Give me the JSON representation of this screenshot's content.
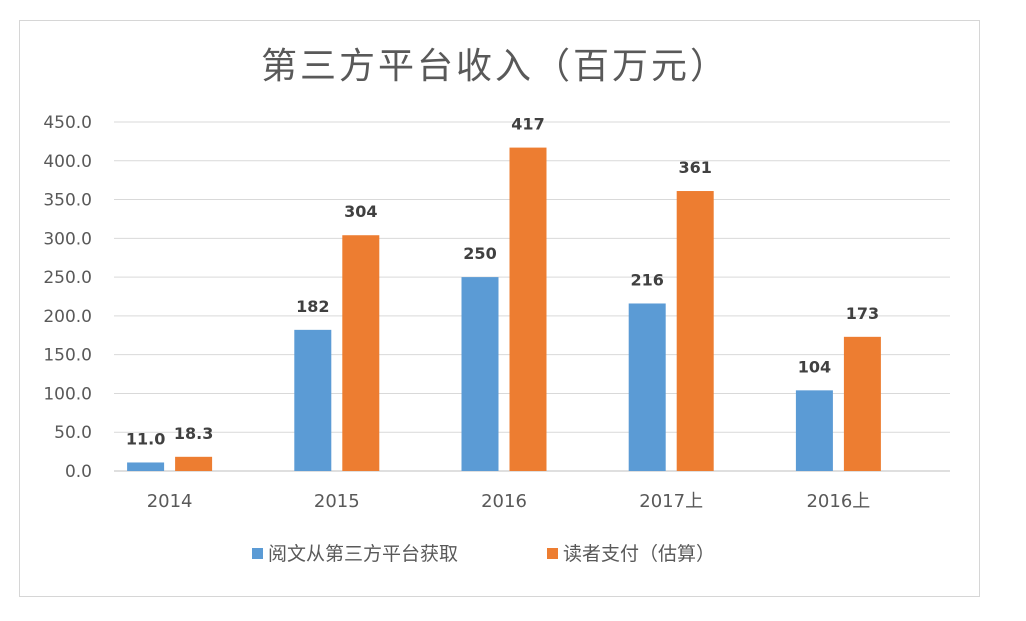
{
  "chart_data": {
    "type": "bar",
    "title": "第三方平台收入（百万元）",
    "categories": [
      "2014",
      "2015",
      "2016",
      "2017上",
      "2016上"
    ],
    "series": [
      {
        "name": "阅文从第三方平台获取",
        "color": "#5b9bd5",
        "values": [
          11.0,
          182,
          250,
          216,
          104
        ],
        "labels": [
          "11.0",
          "182",
          "250",
          "216",
          "104"
        ]
      },
      {
        "name": "读者支付（估算）",
        "color": "#ed7d31",
        "values": [
          18.3,
          304,
          417,
          361,
          173
        ],
        "labels": [
          "18.3",
          "304",
          "417",
          "361",
          "173"
        ]
      }
    ],
    "ylim": [
      0,
      450
    ],
    "yticks": [
      0,
      50,
      100,
      150,
      200,
      250,
      300,
      350,
      400,
      450
    ],
    "ytick_labels": [
      "0.0",
      "50.0",
      "100.0",
      "150.0",
      "200.0",
      "250.0",
      "300.0",
      "350.0",
      "400.0",
      "450.0"
    ],
    "xlabel": "",
    "ylabel": "",
    "grid": true,
    "legend_position": "bottom"
  }
}
